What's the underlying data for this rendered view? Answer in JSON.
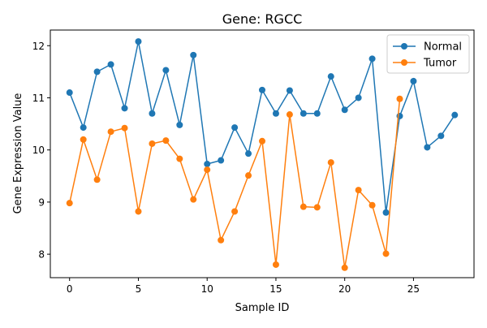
{
  "chart_data": {
    "type": "line",
    "title": "Gene: RGCC",
    "xlabel": "Sample ID",
    "ylabel": "Gene Expression Value",
    "xlim": [
      -1.4,
      29.4
    ],
    "ylim": [
      7.55,
      12.3
    ],
    "x_ticks": [
      0,
      5,
      10,
      15,
      20,
      25
    ],
    "y_ticks": [
      8,
      9,
      10,
      11,
      12
    ],
    "grid": false,
    "legend_position": "top-right",
    "series": [
      {
        "name": "Normal",
        "color": "#1f77b4",
        "x": [
          0,
          1,
          2,
          3,
          4,
          5,
          6,
          7,
          8,
          9,
          10,
          11,
          12,
          13,
          14,
          15,
          16,
          17,
          18,
          19,
          20,
          21,
          22,
          23,
          24,
          25,
          26,
          27,
          28
        ],
        "values": [
          11.1,
          10.43,
          11.5,
          11.64,
          10.8,
          12.08,
          10.7,
          11.53,
          10.48,
          11.82,
          9.73,
          9.8,
          10.43,
          9.93,
          11.15,
          10.7,
          11.14,
          10.7,
          10.7,
          11.41,
          10.77,
          11.0,
          11.75,
          8.8,
          10.65,
          11.32,
          10.05,
          10.27,
          10.67
        ]
      },
      {
        "name": "Tumor",
        "color": "#ff7f0e",
        "x": [
          0,
          1,
          2,
          3,
          4,
          5,
          6,
          7,
          8,
          9,
          10,
          11,
          12,
          13,
          14,
          15,
          16,
          17,
          18,
          19,
          20,
          21,
          22,
          23,
          24
        ],
        "values": [
          8.98,
          10.2,
          9.43,
          10.35,
          10.42,
          8.82,
          10.12,
          10.18,
          9.83,
          9.05,
          9.62,
          8.27,
          8.82,
          9.51,
          10.17,
          7.8,
          10.68,
          8.91,
          8.9,
          9.76,
          7.74,
          9.23,
          8.94,
          8.01,
          10.98
        ]
      }
    ]
  }
}
